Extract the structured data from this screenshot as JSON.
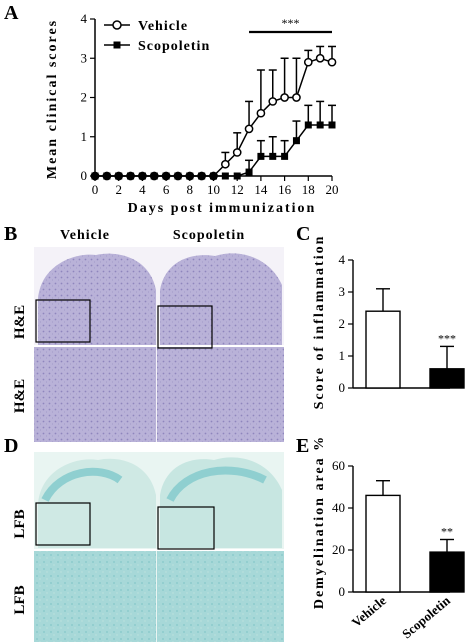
{
  "panels": {
    "A": "A",
    "B": "B",
    "C": "C",
    "D": "D",
    "E": "E"
  },
  "colors": {
    "vehicle": "#ffffff",
    "scopoletin": "#000000",
    "he_stain": "#b7b0d8",
    "lfb_stain": "#9ed3d6",
    "lfb_light": "#dcefec"
  },
  "histology": {
    "columns": [
      "Vehicle",
      "Scopoletin"
    ],
    "stain_he": "H&E",
    "stain_lfb": "LFB"
  },
  "chart_data": [
    {
      "type": "line",
      "panel": "A",
      "xlabel": "Days post immunization",
      "ylabel": "Mean clinical scores",
      "x": [
        0,
        1,
        2,
        3,
        4,
        5,
        6,
        7,
        8,
        9,
        10,
        11,
        12,
        13,
        14,
        15,
        16,
        17,
        18,
        19,
        20
      ],
      "xticks": [
        0,
        2,
        4,
        6,
        8,
        10,
        12,
        14,
        16,
        18,
        20
      ],
      "yticks": [
        0,
        1,
        2,
        3,
        4
      ],
      "xlim": [
        0,
        20
      ],
      "ylim": [
        0,
        4
      ],
      "series": [
        {
          "name": "Vehicle",
          "marker": "open-circle",
          "values": [
            0,
            0,
            0,
            0,
            0,
            0,
            0,
            0,
            0,
            0,
            0,
            0.3,
            0.6,
            1.2,
            1.6,
            1.9,
            2.0,
            2.0,
            2.9,
            3.0,
            2.9
          ],
          "errors": [
            0,
            0,
            0,
            0,
            0,
            0,
            0,
            0,
            0,
            0,
            0,
            0.3,
            0.5,
            0.7,
            1.1,
            0.8,
            1.0,
            1.0,
            0.3,
            0.3,
            0.4
          ]
        },
        {
          "name": "Scopoletin",
          "marker": "filled-square",
          "values": [
            0,
            0,
            0,
            0,
            0,
            0,
            0,
            0,
            0,
            0,
            0,
            0,
            0,
            0.1,
            0.5,
            0.5,
            0.5,
            0.9,
            1.3,
            1.3,
            1.3
          ],
          "errors": [
            0,
            0,
            0,
            0,
            0,
            0,
            0,
            0,
            0,
            0,
            0,
            0,
            0,
            0.3,
            0.4,
            0.5,
            0.4,
            0.5,
            0.5,
            0.6,
            0.5
          ]
        }
      ],
      "annotation": {
        "text": "***",
        "from_x": 13,
        "to_x": 20
      }
    },
    {
      "type": "bar",
      "panel": "C",
      "ylabel": "Score of inflammation",
      "categories": [
        "Vehicle",
        "Scopoletin"
      ],
      "values": [
        2.4,
        0.6
      ],
      "errors": [
        0.7,
        0.7
      ],
      "ylim": [
        0,
        4
      ],
      "yticks": [
        0,
        1,
        2,
        3,
        4
      ],
      "significance": [
        "",
        "***"
      ]
    },
    {
      "type": "bar",
      "panel": "E",
      "ylabel": "Demyelination area %",
      "categories": [
        "Vehicle",
        "Scopoletin"
      ],
      "values": [
        46,
        19
      ],
      "errors": [
        7,
        6
      ],
      "ylim": [
        0,
        60
      ],
      "yticks": [
        0,
        20,
        40,
        60
      ],
      "significance": [
        "",
        "**"
      ]
    }
  ]
}
